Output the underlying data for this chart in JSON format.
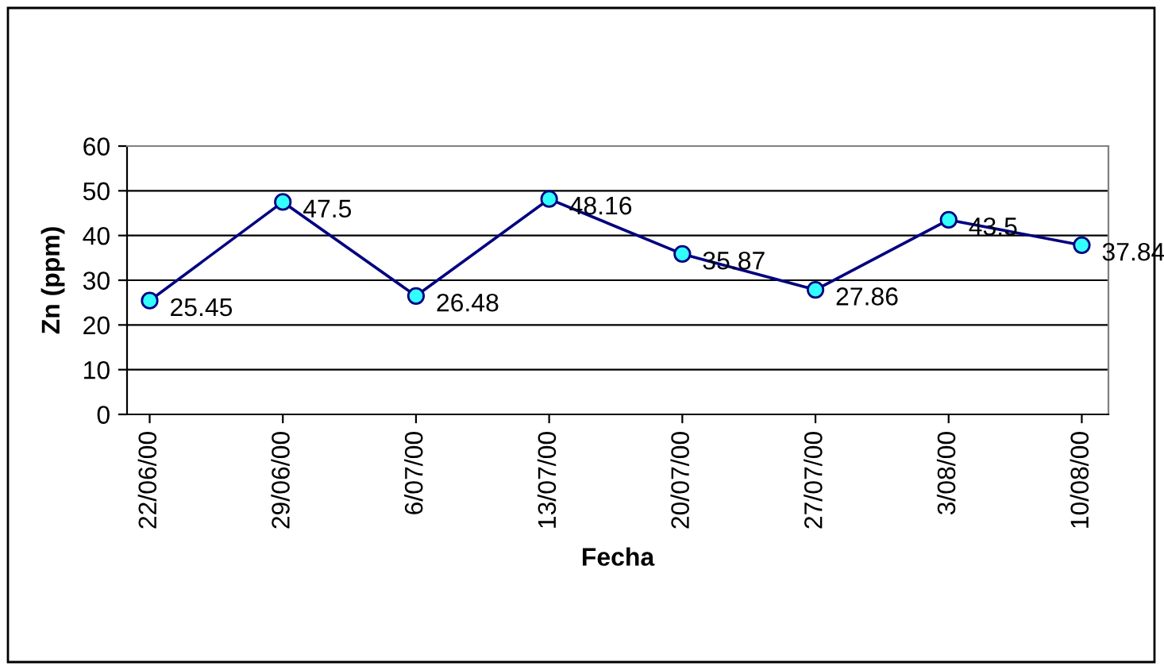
{
  "chart_data": {
    "type": "line",
    "xlabel": "Fecha",
    "ylabel": "Zn (ppm)",
    "categories": [
      "22/06/00",
      "29/06/00",
      "6/07/00",
      "13/07/00",
      "20/07/00",
      "27/07/00",
      "3/08/00",
      "10/08/00"
    ],
    "series": [
      {
        "color": "#000080",
        "values": [
          25.45,
          47.5,
          26.48,
          48.16,
          35.87,
          27.86,
          43.5,
          37.84
        ]
      }
    ],
    "marker": "circle",
    "ylim": [
      0,
      60
    ],
    "yticks": [
      0,
      10,
      20,
      30,
      40,
      50,
      60
    ],
    "grid": "y",
    "legend": false,
    "data_labels": true
  }
}
